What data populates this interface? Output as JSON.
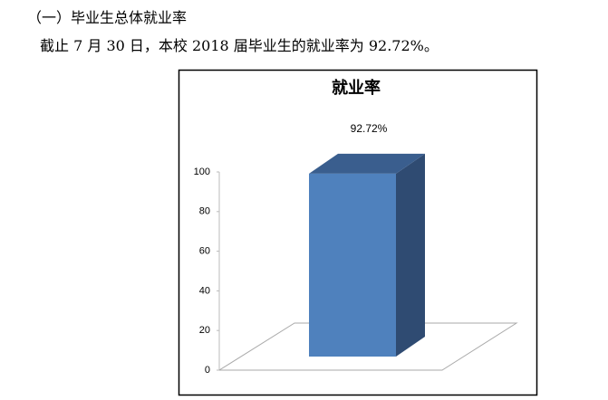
{
  "heading": "（一）毕业生总体就业率",
  "paragraph": "截止 7 月 30 日，本校 2018 届毕业生的就业率为 92.72%。",
  "chart_data": {
    "type": "bar",
    "title": "就业率",
    "categories": [
      null
    ],
    "values": [
      92.72
    ],
    "value_labels": [
      "92.72%"
    ],
    "color": "#4f81bd",
    "ylim": [
      0,
      100
    ],
    "yticks": [
      0,
      20,
      40,
      60,
      80,
      100
    ]
  }
}
